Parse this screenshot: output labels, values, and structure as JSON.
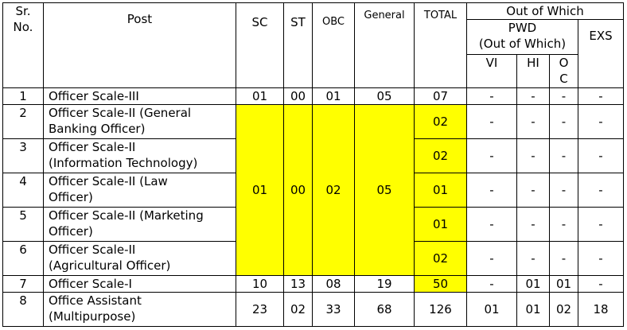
{
  "headers": {
    "sr": "Sr.\nNo.",
    "post": "Post",
    "sc": "SC",
    "st": "ST",
    "obc": "OBC",
    "general": "General",
    "total": "TOTAL",
    "out_of_which": "Out of Which",
    "pwd": "PWD\n(Out of Which)",
    "exs": "EXS",
    "vi": "VI",
    "hi": "HI",
    "oc": "O\nC"
  },
  "rows": [
    {
      "sr": "1",
      "post": "Officer Scale-III",
      "sc": "01",
      "st": "00",
      "obc": "01",
      "general": "05",
      "total": "07",
      "vi": "-",
      "hi": "-",
      "oc": "-",
      "exs": "-"
    },
    {
      "sr": "2",
      "post": "Officer Scale-II  (General\nBanking Officer)",
      "total": "02",
      "vi": "-",
      "hi": "-",
      "oc": "-",
      "exs": "-"
    },
    {
      "sr": "3",
      "post": "Officer Scale-II\n(Information Technology)",
      "total": "02",
      "vi": "-",
      "hi": "-",
      "oc": "-",
      "exs": "-"
    },
    {
      "sr": "4",
      "post": "Officer Scale-II  (Law\nOfficer)",
      "total": "01",
      "vi": "-",
      "hi": "-",
      "oc": "-",
      "exs": "-"
    },
    {
      "sr": "5",
      "post": "Officer Scale-II  (Marketing\nOfficer)",
      "total": "01",
      "vi": "-",
      "hi": "-",
      "oc": "-",
      "exs": "-"
    },
    {
      "sr": "6",
      "post": "Officer Scale-II\n(Agricultural Officer)",
      "total": "02",
      "vi": "-",
      "hi": "-",
      "oc": "-",
      "exs": "-"
    },
    {
      "sr": "7",
      "post": "Officer Scale-I",
      "sc": "10",
      "st": "13",
      "obc": "08",
      "general": "19",
      "total": "50",
      "vi": "-",
      "hi": "01",
      "oc": "01",
      "exs": "-"
    },
    {
      "sr": "8",
      "post": "Office Assistant\n(Multipurpose)",
      "sc": "23",
      "st": "02",
      "obc": "33",
      "general": "68",
      "total": "126",
      "vi": "01",
      "hi": "01",
      "oc": "02",
      "exs": "18"
    }
  ],
  "merged_scale_ii": {
    "sc": "01",
    "st": "00",
    "obc": "02",
    "general": "05"
  },
  "colors": {
    "highlight": "#ffff00",
    "border": "#000000"
  }
}
